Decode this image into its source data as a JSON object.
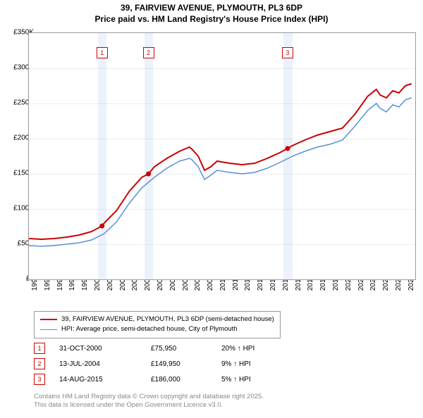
{
  "title_line1": "39, FAIRVIEW AVENUE, PLYMOUTH, PL3 6DP",
  "title_line2": "Price paid vs. HM Land Registry's House Price Index (HPI)",
  "chart": {
    "type": "line",
    "x_years": [
      1995,
      1996,
      1997,
      1998,
      1999,
      2000,
      2001,
      2002,
      2003,
      2004,
      2005,
      2006,
      2007,
      2008,
      2009,
      2010,
      2011,
      2012,
      2013,
      2014,
      2015,
      2016,
      2017,
      2018,
      2019,
      2020,
      2021,
      2022,
      2023,
      2024,
      2025
    ],
    "xlim": [
      1995,
      2025.8
    ],
    "ylim": [
      0,
      350000
    ],
    "ytick_step": 50000,
    "ytick_labels": [
      "£0",
      "£50K",
      "£100K",
      "£150K",
      "£200K",
      "£250K",
      "£300K",
      "£350K"
    ],
    "series_price": {
      "label": "39, FAIRVIEW AVENUE, PLYMOUTH, PL3 6DP (semi-detached house)",
      "color": "#cc0000",
      "width": 2,
      "points": [
        [
          1995,
          58000
        ],
        [
          1996,
          57000
        ],
        [
          1997,
          58000
        ],
        [
          1998,
          60000
        ],
        [
          1999,
          63000
        ],
        [
          2000,
          68000
        ],
        [
          2000.83,
          75950
        ],
        [
          2001,
          80000
        ],
        [
          2002,
          98000
        ],
        [
          2003,
          125000
        ],
        [
          2004,
          145000
        ],
        [
          2004.53,
          149950
        ],
        [
          2005,
          160000
        ],
        [
          2006,
          172000
        ],
        [
          2007,
          182000
        ],
        [
          2007.8,
          188000
        ],
        [
          2008,
          185000
        ],
        [
          2008.5,
          175000
        ],
        [
          2009,
          155000
        ],
        [
          2009.5,
          160000
        ],
        [
          2010,
          168000
        ],
        [
          2011,
          165000
        ],
        [
          2012,
          163000
        ],
        [
          2013,
          165000
        ],
        [
          2014,
          172000
        ],
        [
          2015,
          180000
        ],
        [
          2015.62,
          186000
        ],
        [
          2016,
          190000
        ],
        [
          2017,
          198000
        ],
        [
          2018,
          205000
        ],
        [
          2019,
          210000
        ],
        [
          2020,
          215000
        ],
        [
          2021,
          235000
        ],
        [
          2022,
          260000
        ],
        [
          2022.7,
          270000
        ],
        [
          2023,
          262000
        ],
        [
          2023.5,
          258000
        ],
        [
          2024,
          268000
        ],
        [
          2024.5,
          265000
        ],
        [
          2025,
          275000
        ],
        [
          2025.5,
          278000
        ]
      ]
    },
    "series_hpi": {
      "label": "HPI: Average price, semi-detached house, City of Plymouth",
      "color": "#5b8fd6",
      "width": 1.5,
      "points": [
        [
          1995,
          48000
        ],
        [
          1996,
          47000
        ],
        [
          1997,
          48000
        ],
        [
          1998,
          50000
        ],
        [
          1999,
          52000
        ],
        [
          2000,
          56000
        ],
        [
          2001,
          65000
        ],
        [
          2002,
          82000
        ],
        [
          2003,
          108000
        ],
        [
          2004,
          130000
        ],
        [
          2005,
          145000
        ],
        [
          2006,
          158000
        ],
        [
          2007,
          168000
        ],
        [
          2007.8,
          172000
        ],
        [
          2008,
          170000
        ],
        [
          2008.5,
          160000
        ],
        [
          2009,
          142000
        ],
        [
          2009.5,
          148000
        ],
        [
          2010,
          155000
        ],
        [
          2011,
          152000
        ],
        [
          2012,
          150000
        ],
        [
          2013,
          152000
        ],
        [
          2014,
          158000
        ],
        [
          2015,
          166000
        ],
        [
          2016,
          175000
        ],
        [
          2017,
          182000
        ],
        [
          2018,
          188000
        ],
        [
          2019,
          192000
        ],
        [
          2020,
          198000
        ],
        [
          2021,
          218000
        ],
        [
          2022,
          240000
        ],
        [
          2022.7,
          250000
        ],
        [
          2023,
          243000
        ],
        [
          2023.5,
          238000
        ],
        [
          2024,
          248000
        ],
        [
          2024.5,
          245000
        ],
        [
          2025,
          255000
        ],
        [
          2025.5,
          258000
        ]
      ]
    },
    "sale_markers": [
      {
        "n": "1",
        "x": 2000.83,
        "y": 75950,
        "band": [
          2000.5,
          2001.2
        ]
      },
      {
        "n": "2",
        "x": 2004.53,
        "y": 149950,
        "band": [
          2004.2,
          2004.9
        ]
      },
      {
        "n": "3",
        "x": 2015.62,
        "y": 186000,
        "band": [
          2015.3,
          2016.0
        ]
      }
    ],
    "grid_color": "#eeeeee",
    "background_color": "#ffffff",
    "border_color": "#999999"
  },
  "sales": [
    {
      "n": "1",
      "date": "31-OCT-2000",
      "price": "£75,950",
      "diff": "20% ↑ HPI"
    },
    {
      "n": "2",
      "date": "13-JUL-2004",
      "price": "£149,950",
      "diff": "9% ↑ HPI"
    },
    {
      "n": "3",
      "date": "14-AUG-2015",
      "price": "£186,000",
      "diff": "5% ↑ HPI"
    }
  ],
  "attribution_line1": "Contains HM Land Registry data © Crown copyright and database right 2025.",
  "attribution_line2": "This data is licensed under the Open Government Licence v3.0."
}
